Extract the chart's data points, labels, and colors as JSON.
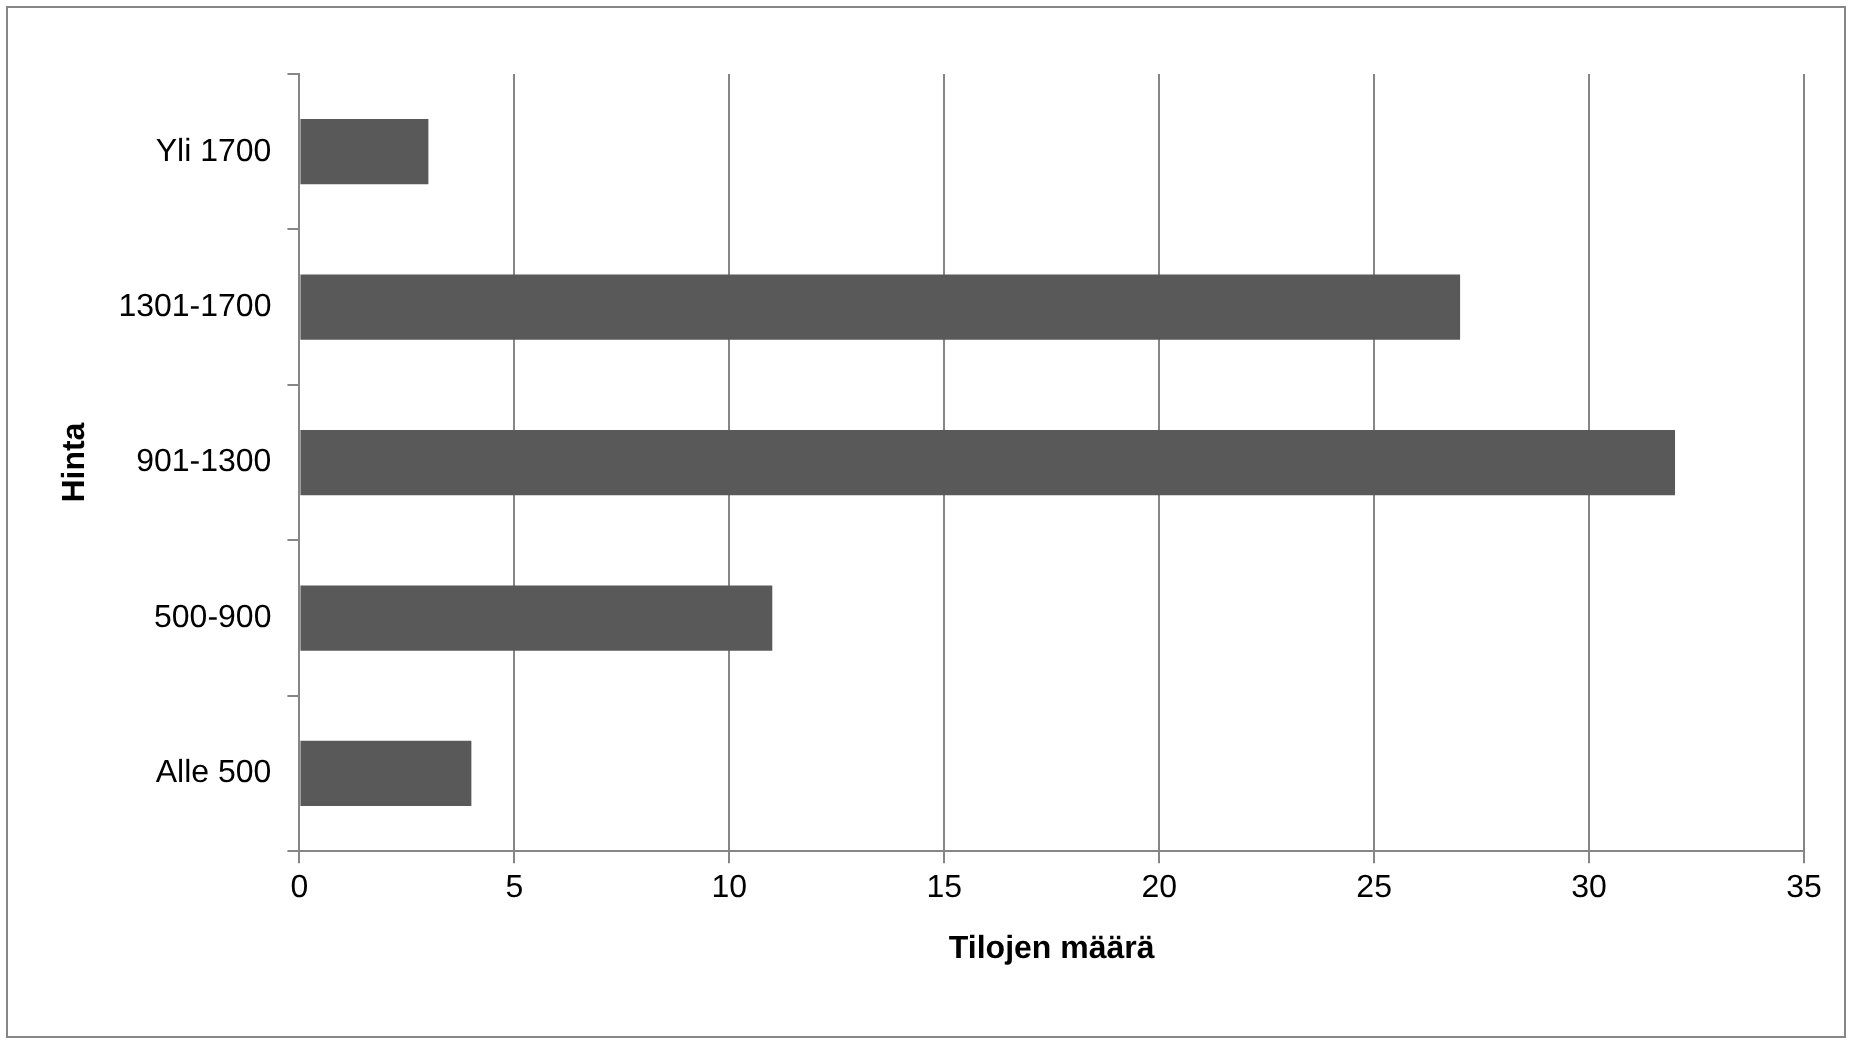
{
  "chart_data": {
    "type": "bar",
    "orientation": "horizontal",
    "xlabel": "Tilojen määrä",
    "ylabel": "Hinta",
    "categories": [
      "Yli 1700",
      "1301-1700",
      "901-1300",
      "500-900",
      "Alle 500"
    ],
    "values": [
      3,
      27,
      32,
      11,
      4
    ],
    "color": "#595959",
    "xlim": [
      0,
      35
    ],
    "xticks": [
      0,
      5,
      10,
      15,
      20,
      25,
      30,
      35
    ],
    "grid": "x",
    "legend": false
  }
}
